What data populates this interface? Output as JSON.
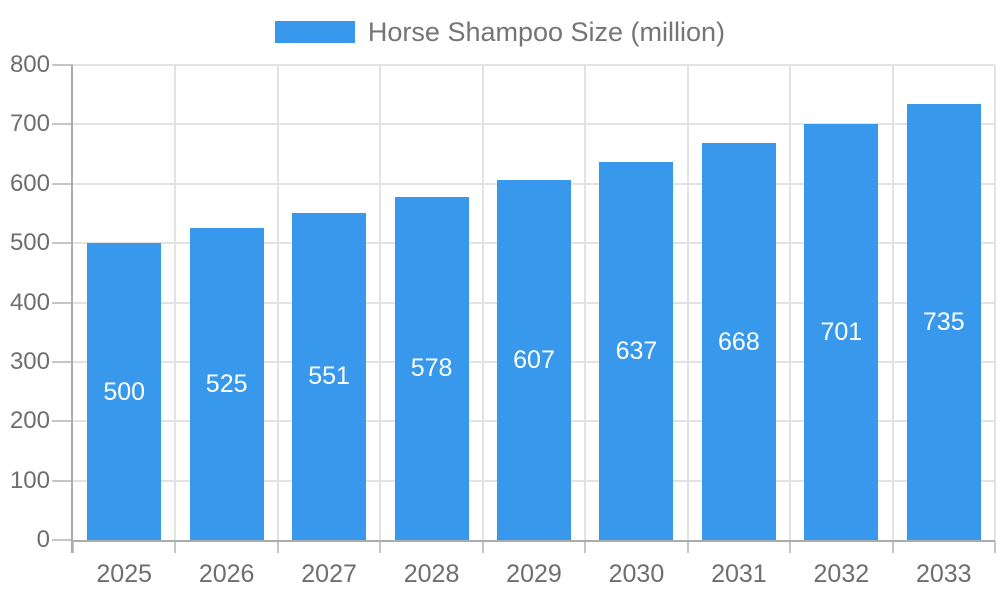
{
  "legend": {
    "label": "Horse Shampoo Size (million)"
  },
  "chart_data": {
    "type": "bar",
    "title": "",
    "legend_entries": [
      "Horse Shampoo Size (million)"
    ],
    "legend_position": "top-center",
    "categories": [
      "2025",
      "2026",
      "2027",
      "2028",
      "2029",
      "2030",
      "2031",
      "2032",
      "2033"
    ],
    "series": [
      {
        "name": "Horse Shampoo Size (million)",
        "values": [
          500,
          525,
          551,
          578,
          607,
          637,
          668,
          701,
          735
        ]
      }
    ],
    "value_labels": [
      "500",
      "525",
      "551",
      "578",
      "607",
      "637",
      "668",
      "701",
      "735"
    ],
    "xlabel": "",
    "ylabel": "",
    "ylim": [
      0,
      800
    ],
    "ytick_step": 100,
    "yticks": [
      0,
      100,
      200,
      300,
      400,
      500,
      600,
      700,
      800
    ],
    "grid": true,
    "colors": {
      "bar": "#3899EC",
      "axis_line": "#ACACAC",
      "tick_line": "#C6C6C6",
      "grid_line": "#E3E3E3",
      "axis_text": "#6E6E6E",
      "legend_text": "#757575",
      "value_text": "#FFFFFF",
      "background": "#FFFFFF"
    }
  }
}
